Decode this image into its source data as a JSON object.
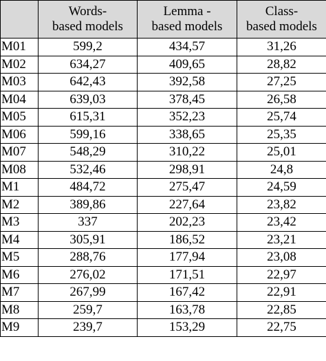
{
  "table": {
    "headers": [
      {
        "line1": "Words-",
        "line2": "based models"
      },
      {
        "line1": "Lemma -",
        "line2": "based models"
      },
      {
        "line1": "Class-",
        "line2": "based models"
      }
    ],
    "rows": [
      {
        "label": "M01",
        "words": "599,2",
        "lemma": "434,57",
        "class": "31,26"
      },
      {
        "label": "M02",
        "words": "634,27",
        "lemma": "409,65",
        "class": "28,82"
      },
      {
        "label": "M03",
        "words": "642,43",
        "lemma": "392,58",
        "class": "27,25"
      },
      {
        "label": "M04",
        "words": "639,03",
        "lemma": "378,45",
        "class": "26,58"
      },
      {
        "label": "M05",
        "words": "615,31",
        "lemma": "352,23",
        "class": "25,74"
      },
      {
        "label": "M06",
        "words": "599,16",
        "lemma": "338,65",
        "class": "25,35"
      },
      {
        "label": "M07",
        "words": "548,29",
        "lemma": "310,22",
        "class": "25,01"
      },
      {
        "label": "M08",
        "words": "532,46",
        "lemma": "298,91",
        "class": "24,8"
      },
      {
        "label": "M1",
        "words": "484,72",
        "lemma": "275,47",
        "class": "24,59"
      },
      {
        "label": "M2",
        "words": "389,86",
        "lemma": "227,64",
        "class": "23,82"
      },
      {
        "label": "M3",
        "words": "337",
        "lemma": "202,23",
        "class": "23,42"
      },
      {
        "label": "M4",
        "words": "305,91",
        "lemma": "186,52",
        "class": "23,21"
      },
      {
        "label": "M5",
        "words": "288,76",
        "lemma": "177,94",
        "class": "23,08"
      },
      {
        "label": "M6",
        "words": "276,02",
        "lemma": "171,51",
        "class": "22,97"
      },
      {
        "label": "M7",
        "words": "267,99",
        "lemma": "167,42",
        "class": "22,91"
      },
      {
        "label": "M8",
        "words": "259,7",
        "lemma": "163,78",
        "class": "22,85"
      },
      {
        "label": "M9",
        "words": "239,7",
        "lemma": "153,29",
        "class": "22,75"
      }
    ]
  }
}
